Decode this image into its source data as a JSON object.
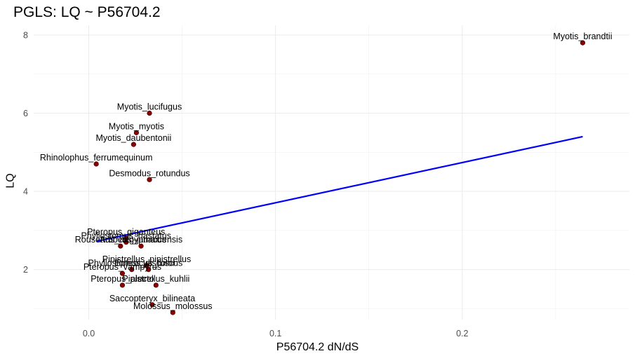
{
  "chart_data": {
    "type": "scatter",
    "title": "PGLS: LQ ~ P56704.2",
    "xlabel": "P56704.2 dN/dS",
    "ylabel": "LQ",
    "xlim": [
      -0.0295,
      0.2895
    ],
    "ylim": [
      0.72,
      8.25
    ],
    "x_ticks": [
      0.0,
      0.1,
      0.2
    ],
    "x_tick_labels": [
      "0.0",
      "0.1",
      "0.2"
    ],
    "y_ticks": [
      2,
      4,
      6,
      8
    ],
    "y_tick_labels": [
      "2",
      "4",
      "6",
      "8"
    ],
    "grid": true,
    "point_color": "#8b0000",
    "line_color": "#0000ff",
    "points": [
      {
        "label": "Myotis_brandtii",
        "x": 0.2645,
        "y": 7.8
      },
      {
        "label": "Myotis_lucifugus",
        "x": 0.0325,
        "y": 6.0
      },
      {
        "label": "Myotis_myotis",
        "x": 0.0255,
        "y": 5.5
      },
      {
        "label": "Myotis_daubentonii",
        "x": 0.024,
        "y": 5.2
      },
      {
        "label": "Rhinolophus_ferrumequinum",
        "x": 0.004,
        "y": 4.7
      },
      {
        "label": "Desmodus_rotundus",
        "x": 0.0325,
        "y": 4.3
      },
      {
        "label": "Pteropus_giganteus",
        "x": 0.02,
        "y": 2.8
      },
      {
        "label": "Phyllostomus_hastatus",
        "x": 0.02,
        "y": 2.7
      },
      {
        "label": "Rousettus_aegyptiacus",
        "x": 0.017,
        "y": 2.6
      },
      {
        "label": "Artibeus_jamaicensis",
        "x": 0.028,
        "y": 2.6
      },
      {
        "label": "Phyllostomus_discolor",
        "x": 0.023,
        "y": 2.0
      },
      {
        "label": "Eptesicus_fuscus",
        "x": 0.032,
        "y": 2.0
      },
      {
        "label": "Pipistrellus_pipistrellus",
        "x": 0.031,
        "y": 2.1
      },
      {
        "label": "Pteropus_vampyrus",
        "x": 0.018,
        "y": 1.9
      },
      {
        "label": "Pteropus_alecto",
        "x": 0.018,
        "y": 1.6
      },
      {
        "label": "Pipistrellus_kuhlii",
        "x": 0.036,
        "y": 1.6
      },
      {
        "label": "Saccopteryx_bilineata",
        "x": 0.034,
        "y": 1.1
      },
      {
        "label": "Molossus_molossus",
        "x": 0.045,
        "y": 0.9
      }
    ],
    "fit_line": {
      "x": [
        0.004,
        0.2645
      ],
      "y": [
        2.72,
        5.4
      ]
    }
  }
}
